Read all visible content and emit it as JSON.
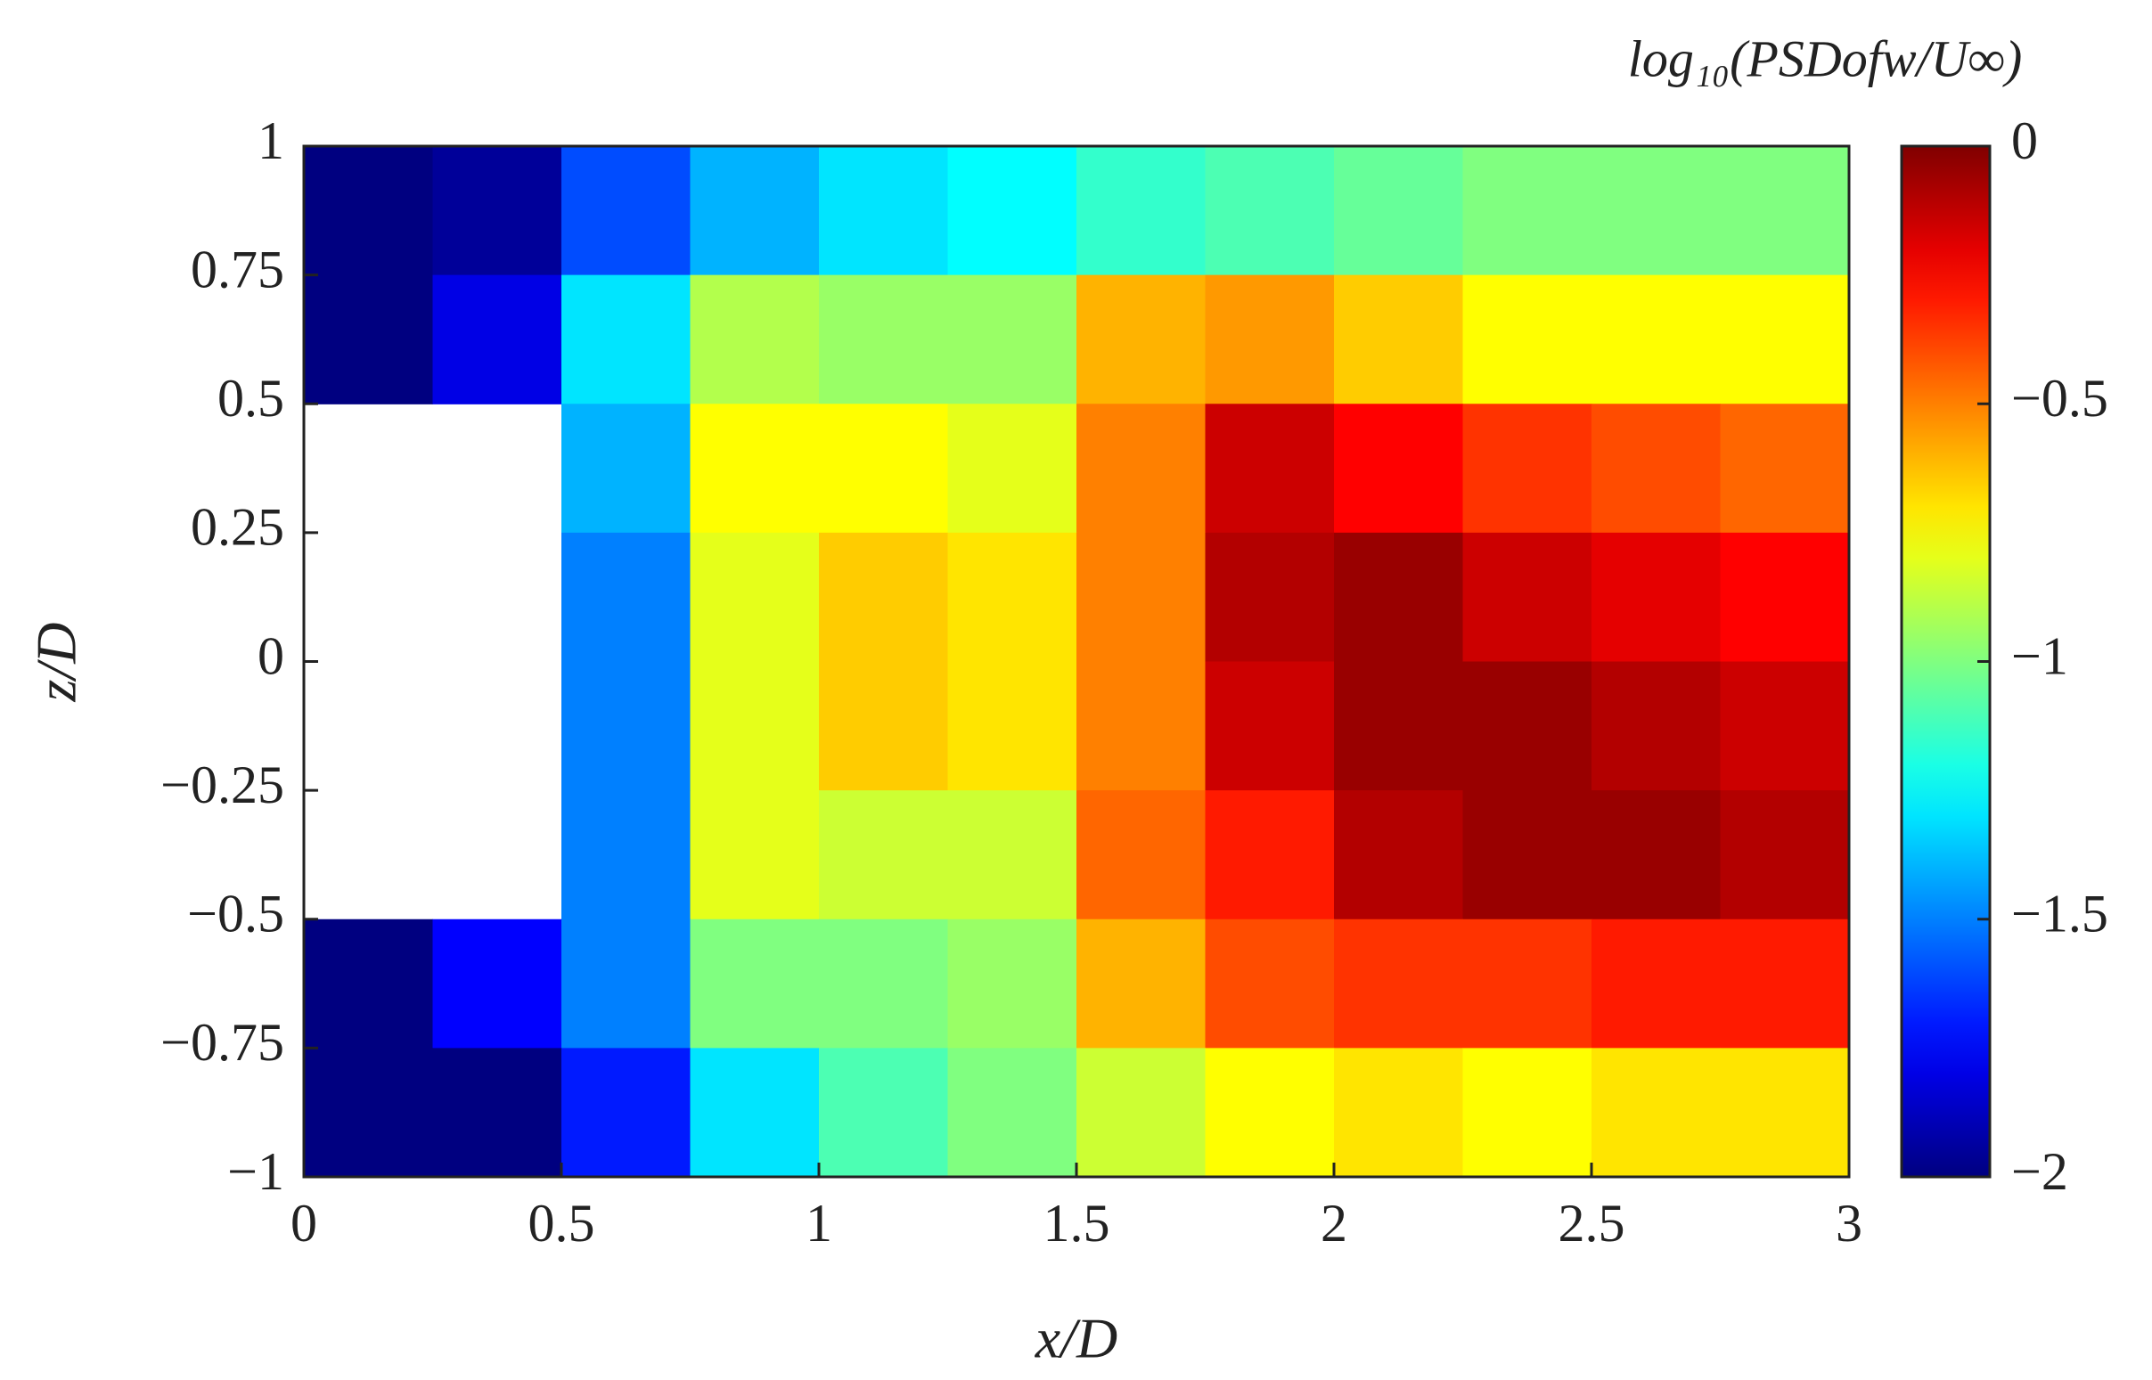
{
  "chart_data": {
    "type": "heatmap",
    "colorbar_title": "log₁₀(PSDofw/U∞)",
    "xlabel": "x/D",
    "ylabel": "z/D",
    "colormap": "jet",
    "clim": [
      -2,
      0
    ],
    "x": [
      0.125,
      0.375,
      0.625,
      0.875,
      1.125,
      1.375,
      1.625,
      1.875,
      2.125,
      2.375,
      2.625,
      2.875
    ],
    "y": [
      0.875,
      0.625,
      0.375,
      0.125,
      -0.125,
      -0.375,
      -0.625,
      -0.875
    ],
    "z": [
      [
        -2,
        -1.95,
        -1.6,
        -1.4,
        -1.3,
        -1.25,
        -1.15,
        -1.1,
        -1.05,
        -1.0,
        -1.0,
        -1.0
      ],
      [
        -2,
        -1.8,
        -1.3,
        -0.9,
        -0.95,
        -0.95,
        -0.6,
        -0.55,
        -0.65,
        -0.75,
        -0.75,
        -0.75
      ],
      [
        null,
        null,
        -1.4,
        -0.75,
        -0.75,
        -0.8,
        -0.5,
        -0.15,
        -0.25,
        -0.35,
        -0.4,
        -0.45
      ],
      [
        null,
        null,
        -1.5,
        -0.8,
        -0.65,
        -0.7,
        -0.5,
        -0.1,
        -0.05,
        -0.15,
        -0.2,
        -0.25
      ],
      [
        null,
        null,
        -1.5,
        -0.8,
        -0.65,
        -0.7,
        -0.5,
        -0.15,
        -0.05,
        -0.05,
        -0.1,
        -0.15
      ],
      [
        null,
        null,
        -1.5,
        -0.8,
        -0.85,
        -0.85,
        -0.45,
        -0.3,
        -0.1,
        -0.05,
        -0.05,
        -0.1
      ],
      [
        -2,
        -1.75,
        -1.5,
        -1.0,
        -1.0,
        -0.95,
        -0.6,
        -0.4,
        -0.35,
        -0.35,
        -0.3,
        -0.3
      ],
      [
        -2,
        -2,
        -1.7,
        -1.3,
        -1.1,
        -1.0,
        -0.85,
        -0.75,
        -0.7,
        -0.75,
        -0.7,
        -0.7
      ]
    ],
    "cell_width": 0.25,
    "cell_height": 0.25,
    "xlim": [
      0,
      3
    ],
    "ylim": [
      -1,
      1
    ],
    "xticks": [
      0,
      0.5,
      1,
      1.5,
      2,
      2.5,
      3
    ],
    "yticks": [
      {
        "value": -1,
        "label": "−1"
      },
      {
        "value": -0.75,
        "label": "−0.75"
      },
      {
        "value": -0.5,
        "label": "−0.5"
      },
      {
        "value": -0.25,
        "label": "−0.25"
      },
      0,
      0.25,
      0.5,
      0.75,
      1
    ],
    "cticks": [
      {
        "value": -2,
        "label": "−2"
      },
      {
        "value": -1.5,
        "label": "−1.5"
      },
      {
        "value": -1,
        "label": "−1"
      },
      {
        "value": -0.5,
        "label": "−0.5"
      },
      0
    ]
  }
}
